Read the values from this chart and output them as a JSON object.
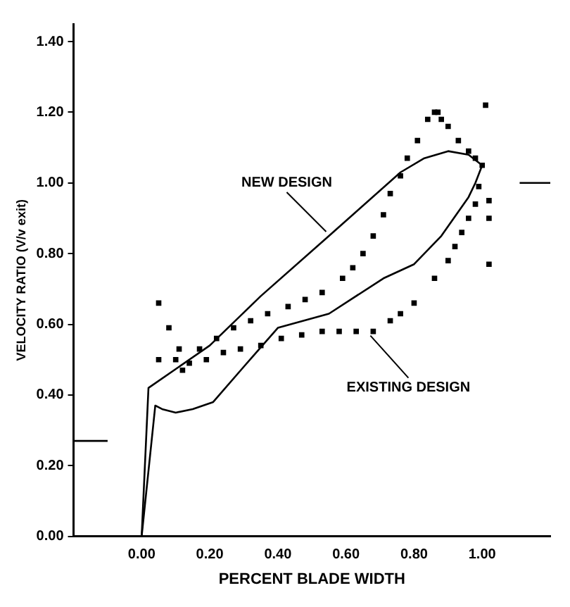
{
  "chart_data": {
    "type": "scatter",
    "xlabel": "PERCENT BLADE WIDTH",
    "ylabel": "VELOCITY RATIO (V/v exit)",
    "xlim": [
      -0.2,
      1.2
    ],
    "ylim": [
      0,
      1.45
    ],
    "xticks": [
      {
        "value": 0,
        "label": "0.00"
      },
      {
        "value": 0.2,
        "label": "0.20"
      },
      {
        "value": 0.4,
        "label": "0.40"
      },
      {
        "value": 0.6,
        "label": "0.60"
      },
      {
        "value": 0.8,
        "label": "0.80"
      },
      {
        "value": 1,
        "label": "1.00"
      }
    ],
    "yticks": [
      {
        "value": 0,
        "label": "0.00"
      },
      {
        "value": 0.2,
        "label": "0.20"
      },
      {
        "value": 0.4,
        "label": "0.40"
      },
      {
        "value": 0.6,
        "label": "0.60"
      },
      {
        "value": 0.8,
        "label": "0.80"
      },
      {
        "value": 1,
        "label": "1.00"
      },
      {
        "value": 1.2,
        "label": "1.20"
      },
      {
        "value": 1.4,
        "label": "1.40"
      }
    ],
    "grid": false,
    "legend": false,
    "series": [
      {
        "type": "line",
        "color": "#000000",
        "marker": "none",
        "x": [
          0,
          0.02,
          0.2,
          0.35,
          0.55,
          0.76,
          0.83,
          0.9,
          0.96,
          1.0
        ],
        "values": [
          0,
          0.42,
          0.54,
          0.68,
          0.85,
          1.03,
          1.07,
          1.09,
          1.08,
          1.05
        ]
      },
      {
        "type": "line",
        "color": "#000000",
        "marker": "none",
        "x": [
          0,
          0.04,
          0.06,
          0.1,
          0.15,
          0.21,
          0.3,
          0.4,
          0.55,
          0.71,
          0.8,
          0.88,
          0.96,
          0.98,
          1.0
        ],
        "values": [
          0,
          0.37,
          0.36,
          0.35,
          0.36,
          0.38,
          0.48,
          0.59,
          0.63,
          0.73,
          0.77,
          0.85,
          0.96,
          1.0,
          1.05
        ]
      },
      {
        "color": "#000000",
        "marker": "square",
        "x": [
          0.05,
          0.1,
          0.17,
          0.22,
          0.27,
          0.32,
          0.37,
          0.43,
          0.48,
          0.53,
          0.59,
          0.62,
          0.65,
          0.68,
          0.71,
          0.73,
          0.76,
          0.78,
          0.81,
          0.84,
          0.86,
          0.87,
          0.88,
          0.9,
          0.93,
          0.96,
          0.98,
          1.0,
          0.99,
          0.98,
          0.96,
          0.94,
          0.92,
          0.9,
          0.86,
          0.8,
          0.76,
          0.73,
          0.68,
          0.63,
          0.58,
          0.53,
          0.47,
          0.41,
          0.35,
          0.29,
          0.24,
          0.19,
          0.14,
          0.05,
          0.08,
          0.11,
          0.12,
          1.01,
          1.02,
          1.02,
          1.02
        ],
        "values": [
          0.5,
          0.5,
          0.53,
          0.56,
          0.59,
          0.61,
          0.63,
          0.65,
          0.67,
          0.69,
          0.73,
          0.76,
          0.8,
          0.85,
          0.91,
          0.97,
          1.02,
          1.07,
          1.12,
          1.18,
          1.2,
          1.2,
          1.18,
          1.16,
          1.12,
          1.09,
          1.07,
          1.05,
          0.99,
          0.94,
          0.9,
          0.86,
          0.82,
          0.78,
          0.73,
          0.66,
          0.63,
          0.61,
          0.58,
          0.58,
          0.58,
          0.58,
          0.57,
          0.56,
          0.54,
          0.53,
          0.52,
          0.5,
          0.49,
          0.66,
          0.59,
          0.53,
          0.47,
          1.22,
          0.95,
          0.9,
          0.77
        ]
      },
      {
        "type": "line",
        "color": "#000000",
        "marker": "none",
        "x": [
          -0.2,
          -0.1
        ],
        "values": [
          0.27,
          0.27
        ]
      },
      {
        "type": "line",
        "color": "#000000",
        "marker": "none",
        "x": [
          1.11,
          1.2
        ],
        "values": [
          1.0,
          1.0
        ]
      }
    ],
    "annotations": [
      {
        "text": "NEW DESIGN",
        "x": 0.55,
        "y": 0.85
      },
      {
        "text": "EXISTING DESIGN",
        "x": 0.68,
        "y": 0.58
      }
    ]
  }
}
